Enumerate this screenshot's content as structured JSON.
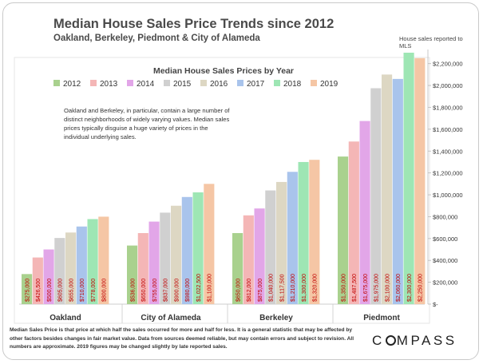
{
  "header": {
    "title": "Median House Sales Price Trends since 2012",
    "subtitle": "Oakland,  Berkeley, Piedmont & City of Alameda",
    "mls_note": "House sales reported to MLS"
  },
  "annotation": "Oakland and Berkeley, in particular, contain a large number of distinct neighborhoods of widely varying values. Median sales prices typically disguise a huge variety of prices in the individual underlying sales.",
  "footnote": "Median Sales Price is that price at which half the sales occurred for more and half for less. It is a general statistic that may be affected by other factors besides changes in fair market value. Data from sources deemed reliable, but may contain errors and subject to revision.  All numbers are approximate.  2019 figures may be changed slightly by late reported sales.",
  "logo": {
    "before": "C",
    "after": "MPASS"
  },
  "colors": {
    "2012": "#a9d18e",
    "2013": "#f4b6b6",
    "2014": "#e2a6e8",
    "2015": "#d0d0d0",
    "2016": "#ddd7c3",
    "2017": "#a9c4ec",
    "2018": "#9ee6b4",
    "2019": "#f5c6a5",
    "label_text": "#c00000"
  },
  "chart_data": {
    "type": "bar",
    "title": "Median House Sales Prices by Year",
    "categories": [
      "Oakland",
      "City of Alameda",
      "Berkeley",
      "Piedmont"
    ],
    "ylim": [
      0,
      2300000
    ],
    "yticks": [
      0,
      200000,
      400000,
      600000,
      800000,
      1000000,
      1200000,
      1400000,
      1600000,
      1800000,
      2000000,
      2200000
    ],
    "ytick_labels": [
      "$-",
      "$200,000",
      "$400,000",
      "$600,000",
      "$800,000",
      "$1,000,000",
      "$1,200,000",
      "$1,400,000",
      "$1,600,000",
      "$1,800,000",
      "$2,000,000",
      "$2,200,000"
    ],
    "legend_position": "top",
    "series": [
      {
        "name": "2012",
        "values": [
          275000,
          536000,
          650000,
          1350000
        ],
        "labels": [
          "$275,000",
          "$536,000",
          "$650,000",
          "$1,350,000"
        ]
      },
      {
        "name": "2013",
        "values": [
          426500,
          650000,
          812000,
          1487500
        ],
        "labels": [
          "$426,500",
          "$650,000",
          "$812,000",
          "$1,487,500"
        ]
      },
      {
        "name": "2014",
        "values": [
          500000,
          755000,
          875000,
          1675000
        ],
        "labels": [
          "$500,000",
          "$755,000",
          "$875,000",
          "$1,675,000"
        ]
      },
      {
        "name": "2015",
        "values": [
          605000,
          837000,
          1040000,
          1975000
        ],
        "labels": [
          "$605,000",
          "$837,000",
          "$1,040,000",
          "$1,975,000"
        ]
      },
      {
        "name": "2016",
        "values": [
          655000,
          900000,
          1117500,
          2100000
        ],
        "labels": [
          "$655,000",
          "$900,000",
          "$1,117,500",
          "$2,100,000"
        ]
      },
      {
        "name": "2017",
        "values": [
          710000,
          980000,
          1210000,
          2060000
        ],
        "labels": [
          "$710,000",
          "$980,000",
          "$1,210,000",
          "$2,060,000"
        ]
      },
      {
        "name": "2018",
        "values": [
          778000,
          1022500,
          1300000,
          2300000
        ],
        "labels": [
          "$778,000",
          "$1,022,500",
          "$1,300,000",
          "$2,300,000"
        ]
      },
      {
        "name": "2019",
        "values": [
          800000,
          1100000,
          1320000,
          2250000
        ],
        "labels": [
          "$800,000",
          "$1,100,000",
          "$1,320,000",
          "$2,250,000"
        ]
      }
    ]
  }
}
